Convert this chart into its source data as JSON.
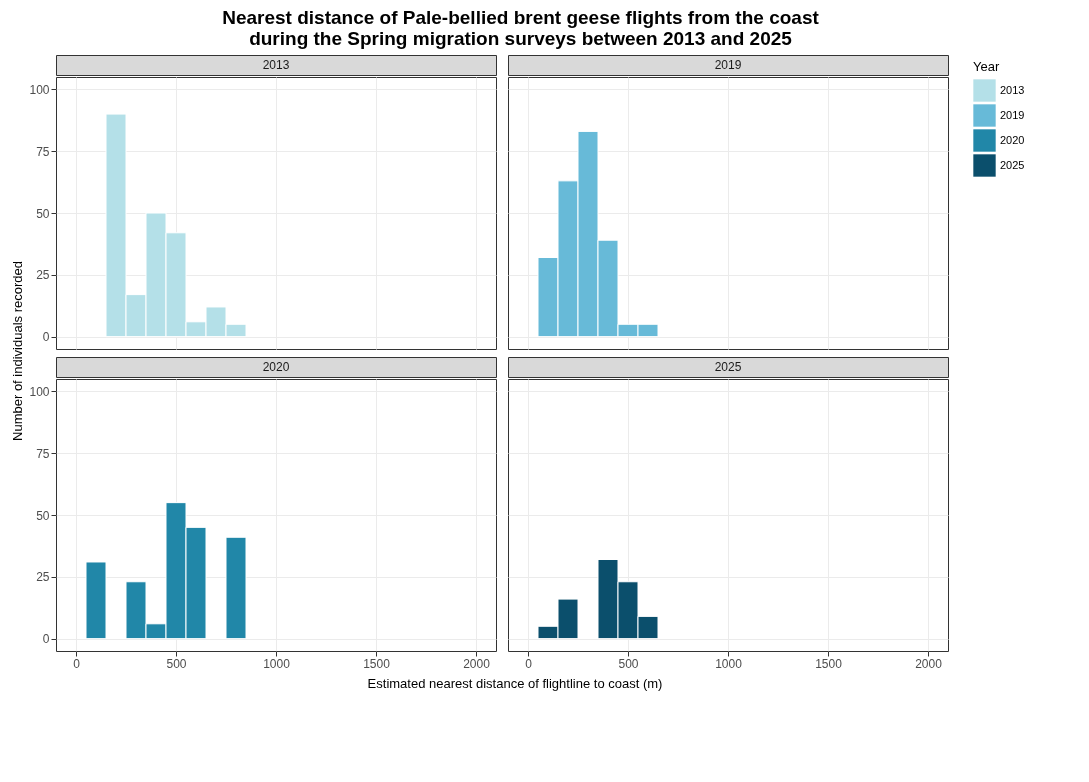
{
  "chart_data": [
    {
      "type": "histogram",
      "title": "Nearest distance of Pale-bellied brent geese flights from the coast\n    during the Spring migration surveys between 2013 and 2025",
      "ylabel": "Number of individuals recorded",
      "legend": "right",
      "legend_title": "Year",
      "tick_labels": "y",
      "bins": [
        150,
        250,
        350,
        450,
        550,
        650,
        750,
        850
      ],
      "series": [
        {
          "name": "2013",
          "color": "#b4e0e8",
          "values": [
            90,
            17,
            50,
            42,
            6,
            12,
            5
          ]
        }
      ],
      "xlim": [
        -100,
        2100
      ],
      "xticks": [
        0,
        500,
        1000,
        1500,
        2000
      ],
      "ylim": [
        -5,
        105
      ],
      "yticks": [
        0,
        25,
        50,
        75,
        100
      ],
      "grid": true
    },
    {
      "type": "histogram",
      "tick_labels": false,
      "bins": [
        50,
        150,
        250,
        350,
        450,
        550,
        650
      ],
      "series": [
        {
          "name": "2019",
          "color": "#67bad8",
          "values": [
            32,
            63,
            83,
            39,
            5,
            5
          ]
        }
      ],
      "xlim": [
        -100,
        2100
      ],
      "xticks": [
        0,
        500,
        1000,
        1500,
        2000
      ],
      "ylim": [
        -5,
        105
      ],
      "yticks": [
        0,
        25,
        50,
        75,
        100
      ],
      "grid": true
    },
    {
      "type": "histogram",
      "xlabel": "Estimated nearest distance of flightline to coast (m)",
      "bins": [
        50,
        150,
        250,
        350,
        450,
        550,
        650,
        750,
        850
      ],
      "series": [
        {
          "name": "2020",
          "color": "#2187a8",
          "values": [
            31,
            0,
            23,
            6,
            55,
            45,
            0,
            41
          ]
        }
      ],
      "xlim": [
        -100,
        2100
      ],
      "xticks": [
        0,
        500,
        1000,
        1500,
        2000
      ],
      "ylim": [
        -5,
        105
      ],
      "yticks": [
        0,
        25,
        50,
        75,
        100
      ],
      "grid": true
    },
    {
      "type": "histogram",
      "tick_labels": "x",
      "bins": [
        50,
        150,
        250,
        350,
        450,
        550,
        650
      ],
      "series": [
        {
          "name": "2025",
          "color": "#0b4f6c",
          "values": [
            5,
            16,
            0,
            32,
            23,
            9
          ]
        }
      ],
      "xlim": [
        -100,
        2100
      ],
      "xticks": [
        0,
        500,
        1000,
        1500,
        2000
      ],
      "ylim": [
        -5,
        105
      ],
      "yticks": [
        0,
        25,
        50,
        75,
        100
      ],
      "grid": true
    }
  ]
}
